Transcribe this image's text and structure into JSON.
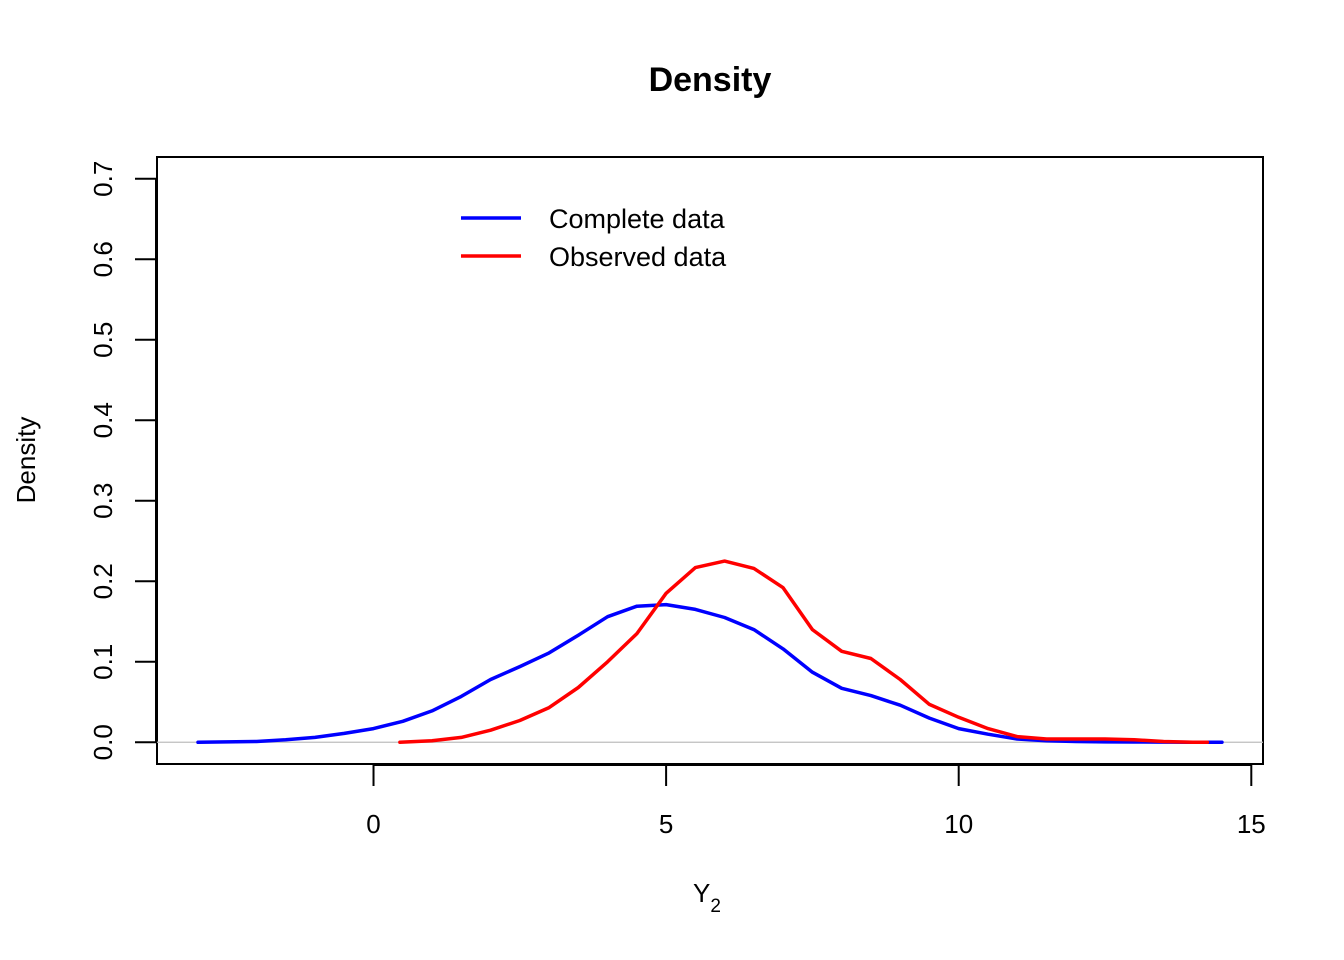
{
  "chart_data": {
    "type": "line",
    "title": "Density",
    "xlabel": "Y",
    "xlabel_subscript": "2",
    "ylabel": "Density",
    "xlim": [
      -3.7,
      15.2
    ],
    "ylim": [
      -0.027,
      0.727
    ],
    "xticks": [
      0,
      5,
      10,
      15
    ],
    "yticks": [
      0.0,
      0.1,
      0.2,
      0.3,
      0.4,
      0.5,
      0.6,
      0.7
    ],
    "xtick_labels": [
      "0",
      "5",
      "10",
      "15"
    ],
    "ytick_labels": [
      "0.0",
      "0.1",
      "0.2",
      "0.3",
      "0.4",
      "0.5",
      "0.6",
      "0.7"
    ],
    "grid": false,
    "baseline_y": 0,
    "legend_position": "top-center",
    "series": [
      {
        "name": "Complete data",
        "color": "#0000FF",
        "x": [
          -3.0,
          -2.0,
          -1.5,
          -1.0,
          -0.5,
          0.0,
          0.5,
          1.0,
          1.5,
          2.0,
          2.5,
          3.0,
          3.5,
          4.0,
          4.5,
          5.0,
          5.5,
          6.0,
          6.5,
          7.0,
          7.5,
          8.0,
          8.5,
          9.0,
          9.5,
          10.0,
          10.5,
          11.0,
          11.5,
          12.0,
          12.5,
          13.0,
          13.5,
          14.0,
          14.5
        ],
        "y": [
          0.0,
          0.001,
          0.003,
          0.006,
          0.011,
          0.017,
          0.026,
          0.039,
          0.057,
          0.078,
          0.094,
          0.111,
          0.133,
          0.156,
          0.169,
          0.171,
          0.165,
          0.155,
          0.14,
          0.116,
          0.087,
          0.067,
          0.058,
          0.046,
          0.03,
          0.017,
          0.01,
          0.004,
          0.002,
          0.001,
          0.0005,
          0.0003,
          0.0002,
          0.0001,
          0.0
        ]
      },
      {
        "name": "Observed data",
        "color": "#FF0000",
        "x": [
          0.45,
          1.0,
          1.5,
          2.0,
          2.5,
          3.0,
          3.5,
          4.0,
          4.5,
          5.0,
          5.5,
          6.0,
          6.5,
          7.0,
          7.5,
          8.0,
          8.5,
          9.0,
          9.5,
          10.0,
          10.5,
          11.0,
          11.5,
          12.0,
          12.5,
          13.0,
          13.5,
          14.0,
          14.25
        ],
        "y": [
          0.0,
          0.002,
          0.006,
          0.015,
          0.027,
          0.043,
          0.068,
          0.1,
          0.135,
          0.185,
          0.217,
          0.225,
          0.216,
          0.192,
          0.14,
          0.113,
          0.104,
          0.078,
          0.047,
          0.031,
          0.017,
          0.007,
          0.004,
          0.004,
          0.004,
          0.003,
          0.001,
          0.0,
          0.0
        ]
      }
    ]
  }
}
